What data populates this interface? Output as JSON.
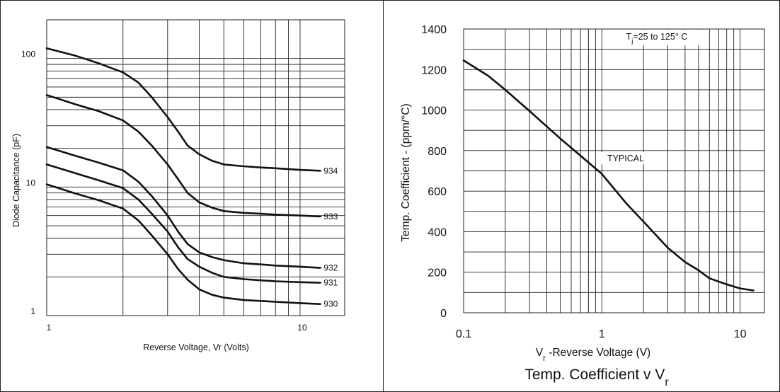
{
  "chart_data": [
    {
      "type": "line",
      "title": "",
      "xlabel": "Reverse Voltage, Vr (Volts)",
      "ylabel": "Diode Capacitance (pF)",
      "x_scale": "log",
      "y_scale": "log",
      "xlim": [
        1,
        15
      ],
      "ylim": [
        1,
        200
      ],
      "x_ticks": [
        {
          "value": 1,
          "label": "1"
        },
        {
          "value": 10,
          "label": "10"
        }
      ],
      "y_ticks": [
        {
          "value": 1,
          "label": "1"
        },
        {
          "value": 10,
          "label": "10"
        },
        {
          "value": 100,
          "label": "100"
        }
      ],
      "grid": true,
      "series": [
        {
          "name": "934",
          "x": [
            1,
            1.3,
            1.6,
            2,
            2.3,
            2.6,
            3,
            3.3,
            3.6,
            4,
            4.5,
            5,
            6,
            7,
            8,
            10,
            12
          ],
          "y": [
            120,
            105,
            92,
            78,
            65,
            50,
            35,
            27,
            21,
            18,
            16,
            15,
            14.5,
            14.2,
            14,
            13.6,
            13.4
          ]
        },
        {
          "name": "933",
          "x": [
            1,
            1.3,
            1.6,
            2,
            2.3,
            2.6,
            3,
            3.3,
            3.6,
            4,
            4.5,
            5,
            6,
            7,
            8,
            10,
            12
          ],
          "y": [
            52,
            44,
            39,
            33,
            27,
            21,
            15,
            11.5,
            9,
            7.6,
            6.9,
            6.5,
            6.3,
            6.2,
            6.1,
            6.0,
            5.9
          ]
        },
        {
          "name": "932",
          "x": [
            1,
            1.3,
            1.6,
            2,
            2.3,
            2.6,
            3,
            3.3,
            3.6,
            4,
            4.5,
            5,
            6,
            7,
            8,
            10,
            12
          ],
          "y": [
            20.5,
            17.5,
            15.5,
            13.5,
            11,
            8.5,
            6,
            4.5,
            3.6,
            3.1,
            2.85,
            2.7,
            2.55,
            2.5,
            2.45,
            2.4,
            2.35
          ]
        },
        {
          "name": "931",
          "x": [
            1,
            1.3,
            1.6,
            2,
            2.3,
            2.6,
            3,
            3.3,
            3.6,
            4,
            4.5,
            5,
            6,
            7,
            8,
            10,
            12
          ],
          "y": [
            15,
            12.8,
            11.3,
            9.8,
            8,
            6.2,
            4.5,
            3.4,
            2.75,
            2.4,
            2.15,
            2.0,
            1.92,
            1.88,
            1.85,
            1.82,
            1.8
          ]
        },
        {
          "name": "930",
          "x": [
            1,
            1.3,
            1.6,
            2,
            2.3,
            2.6,
            3,
            3.3,
            3.6,
            4,
            4.5,
            5,
            6,
            7,
            8,
            10,
            12
          ],
          "y": [
            10.5,
            8.9,
            7.9,
            6.8,
            5.5,
            4.2,
            3.0,
            2.3,
            1.9,
            1.6,
            1.45,
            1.38,
            1.32,
            1.3,
            1.28,
            1.25,
            1.23
          ]
        }
      ]
    },
    {
      "type": "line",
      "title": "Temp. Coefficient v Vr",
      "xlabel": "Vr -Reverse Voltage (V)",
      "ylabel": "Temp. Coefficient - (ppm/°C)",
      "x_scale": "log",
      "y_scale": "linear",
      "xlim": [
        0.1,
        15
      ],
      "ylim": [
        0,
        1400
      ],
      "x_ticks": [
        {
          "value": 0.1,
          "label": "0.1"
        },
        {
          "value": 1,
          "label": "1"
        },
        {
          "value": 10,
          "label": "10"
        }
      ],
      "y_ticks": [
        {
          "value": 0,
          "label": "0"
        },
        {
          "value": 200,
          "label": "200"
        },
        {
          "value": 400,
          "label": "400"
        },
        {
          "value": 600,
          "label": "600"
        },
        {
          "value": 800,
          "label": "800"
        },
        {
          "value": 1000,
          "label": "1000"
        },
        {
          "value": 1200,
          "label": "1200"
        },
        {
          "value": 1400,
          "label": "1400"
        }
      ],
      "grid": true,
      "annotations": [
        "Tj=25 to 125° C",
        "TYPICAL"
      ],
      "series": [
        {
          "name": "TYPICAL",
          "x": [
            0.1,
            0.15,
            0.2,
            0.3,
            0.5,
            0.7,
            1,
            1.5,
            2,
            3,
            4,
            5,
            6,
            8,
            10,
            12.5
          ],
          "y": [
            1245,
            1170,
            1100,
            995,
            860,
            775,
            685,
            540,
            450,
            320,
            250,
            210,
            170,
            140,
            120,
            110
          ]
        }
      ]
    }
  ]
}
